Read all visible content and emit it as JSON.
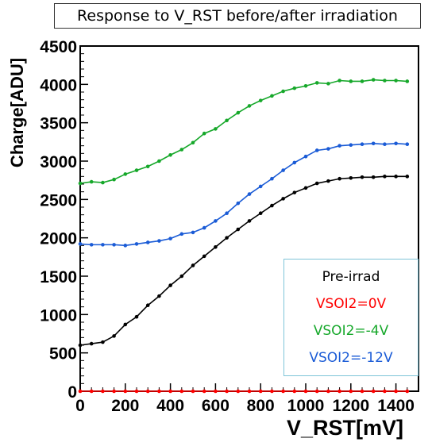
{
  "chart_data": {
    "type": "line",
    "title": "Response to V_RST before/after irradiation",
    "xlabel": "V_RST[mV]",
    "ylabel": "Charge[ADU]",
    "xlim": [
      0,
      1500
    ],
    "ylim": [
      0,
      4500
    ],
    "x_ticks": [
      "0",
      "200",
      "400",
      "600",
      "800",
      "1000",
      "1200",
      "1400"
    ],
    "y_ticks": [
      "0",
      "500",
      "1000",
      "1500",
      "2000",
      "2500",
      "3000",
      "3500",
      "4000",
      "4500"
    ],
    "legend": {
      "placement": "bottom-right",
      "entries": [
        {
          "label": "Pre-irrad",
          "color": "#000000"
        },
        {
          "label": "VSOI2=0V",
          "color": "#ff0000"
        },
        {
          "label": "VSOI2=-4V",
          "color": "#16a82a"
        },
        {
          "label": "VSOI2=-12V",
          "color": "#1a5bd6"
        }
      ]
    },
    "x": [
      0,
      50,
      100,
      150,
      200,
      250,
      300,
      350,
      400,
      450,
      500,
      550,
      600,
      650,
      700,
      750,
      800,
      850,
      900,
      950,
      1000,
      1050,
      1100,
      1150,
      1200,
      1250,
      1300,
      1350,
      1400,
      1450
    ],
    "series": [
      {
        "color": "#000000",
        "values": [
          600,
          620,
          640,
          720,
          870,
          970,
          1120,
          1240,
          1380,
          1500,
          1640,
          1760,
          1880,
          2000,
          2110,
          2220,
          2320,
          2420,
          2510,
          2590,
          2650,
          2710,
          2740,
          2770,
          2780,
          2790,
          2790,
          2800,
          2800,
          2800
        ]
      },
      {
        "color": "#ff0000",
        "values": [
          0,
          0,
          0,
          0,
          0,
          0,
          0,
          0,
          0,
          0,
          0,
          0,
          0,
          0,
          0,
          0,
          0,
          0,
          0,
          0,
          0,
          0,
          0,
          0,
          0,
          0,
          0,
          0,
          0,
          0
        ]
      },
      {
        "color": "#16a82a",
        "values": [
          2710,
          2730,
          2720,
          2760,
          2830,
          2880,
          2930,
          3000,
          3080,
          3150,
          3240,
          3360,
          3420,
          3530,
          3630,
          3720,
          3790,
          3850,
          3910,
          3950,
          3980,
          4020,
          4010,
          4050,
          4040,
          4040,
          4060,
          4050,
          4050,
          4040
        ]
      },
      {
        "color": "#1a5bd6",
        "values": [
          1920,
          1910,
          1910,
          1910,
          1900,
          1920,
          1940,
          1960,
          1990,
          2050,
          2070,
          2130,
          2220,
          2320,
          2450,
          2570,
          2670,
          2770,
          2880,
          2980,
          3060,
          3140,
          3160,
          3200,
          3210,
          3220,
          3230,
          3220,
          3230,
          3220
        ]
      }
    ]
  }
}
